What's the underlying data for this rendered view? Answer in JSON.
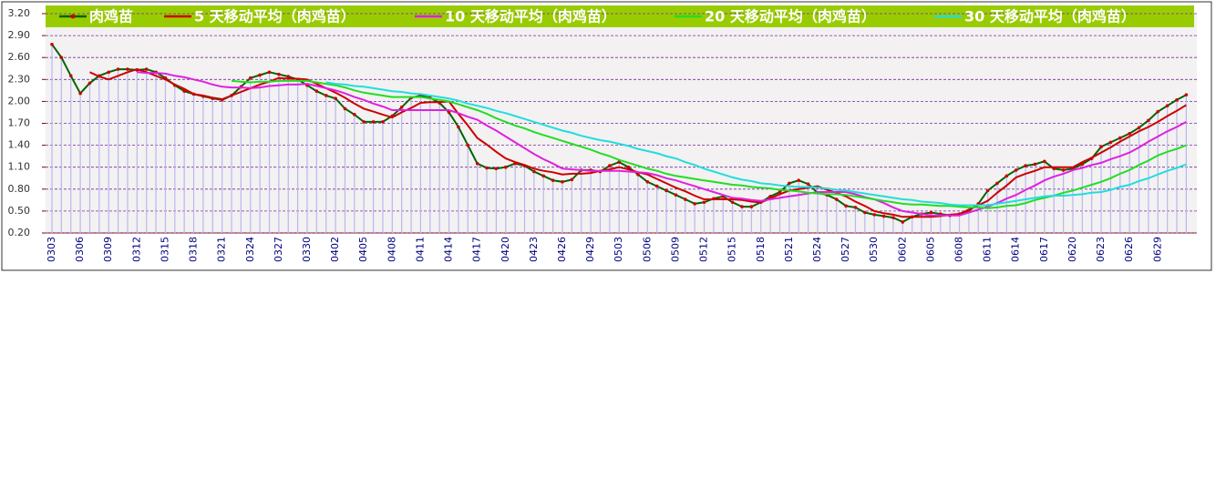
{
  "chart_data": {
    "type": "line",
    "categories": [
      "0303",
      null,
      null,
      "0306",
      null,
      null,
      "0309",
      null,
      null,
      "0312",
      null,
      null,
      "0315",
      null,
      null,
      "0318",
      null,
      null,
      "0321",
      null,
      null,
      "0324",
      null,
      null,
      "0327",
      null,
      null,
      "0330",
      null,
      null,
      "0402",
      null,
      null,
      "0405",
      null,
      null,
      "0408",
      null,
      null,
      "0411",
      null,
      null,
      "0414",
      null,
      null,
      "0417",
      null,
      null,
      "0420",
      null,
      null,
      "0423",
      null,
      null,
      "0426",
      null,
      null,
      "0429",
      null,
      null,
      "0503",
      null,
      null,
      "0506",
      null,
      null,
      "0509",
      null,
      null,
      "0512",
      null,
      null,
      "0515",
      null,
      null,
      "0518",
      null,
      null,
      "0521",
      null,
      null,
      "0524",
      null,
      null,
      "0527",
      null,
      null,
      "0530",
      null,
      null,
      "0602",
      null,
      null,
      "0605",
      null,
      null,
      "0608",
      null,
      null,
      "0611",
      null,
      null,
      "0614",
      null,
      null,
      "0617",
      null,
      null,
      "0620",
      null,
      null,
      "0623",
      null,
      null,
      "0626",
      null,
      null,
      "0629",
      null,
      null,
      null
    ],
    "series": [
      {
        "name": "肉鸡苗",
        "color": "#006400",
        "marker_color": "#cc0000",
        "values": [
          2.78,
          2.6,
          2.35,
          2.11,
          2.25,
          2.35,
          2.4,
          2.44,
          2.44,
          2.43,
          2.44,
          2.4,
          2.32,
          2.22,
          2.14,
          2.1,
          2.07,
          2.04,
          2.02,
          2.08,
          2.2,
          2.32,
          2.36,
          2.4,
          2.37,
          2.34,
          2.3,
          2.22,
          2.14,
          2.08,
          2.04,
          1.9,
          1.82,
          1.72,
          1.72,
          1.72,
          1.8,
          1.92,
          2.05,
          2.08,
          2.05,
          1.98,
          1.85,
          1.65,
          1.4,
          1.15,
          1.09,
          1.08,
          1.1,
          1.15,
          1.12,
          1.04,
          0.98,
          0.92,
          0.9,
          0.93,
          1.06,
          1.06,
          1.04,
          1.12,
          1.17,
          1.1,
          1.0,
          0.9,
          0.84,
          0.78,
          0.72,
          0.66,
          0.6,
          0.62,
          0.67,
          0.7,
          0.62,
          0.56,
          0.56,
          0.62,
          0.7,
          0.76,
          0.88,
          0.92,
          0.87,
          0.75,
          0.72,
          0.66,
          0.57,
          0.55,
          0.48,
          0.45,
          0.43,
          0.41,
          0.35,
          0.42,
          0.46,
          0.48,
          0.46,
          0.44,
          0.46,
          0.5,
          0.6,
          0.78,
          0.88,
          0.98,
          1.06,
          1.12,
          1.14,
          1.18,
          1.08,
          1.06,
          1.08,
          1.14,
          1.22,
          1.38,
          1.44,
          1.5,
          1.56,
          1.64,
          1.74,
          1.86,
          1.94,
          2.02,
          2.09
        ]
      },
      {
        "name": "5  天移动平均（肉鸡苗）",
        "color": "#cc0000",
        "values": [
          null,
          null,
          null,
          null,
          2.4,
          2.34,
          2.3,
          2.35,
          2.4,
          2.44,
          2.4,
          2.35,
          2.3,
          2.23,
          2.17,
          2.1,
          2.08,
          2.05,
          2.03,
          2.08,
          2.13,
          2.18,
          2.23,
          2.27,
          2.32,
          2.31,
          2.31,
          2.3,
          2.24,
          2.18,
          2.12,
          2.05,
          1.97,
          1.9,
          1.86,
          1.82,
          1.78,
          1.85,
          1.91,
          1.98,
          1.99,
          1.99,
          2.0,
          1.83,
          1.67,
          1.5,
          1.41,
          1.31,
          1.22,
          1.17,
          1.13,
          1.08,
          1.05,
          1.03,
          1.0,
          1.01,
          1.01,
          1.02,
          1.05,
          1.07,
          1.1,
          1.07,
          1.03,
          1.0,
          0.94,
          0.88,
          0.82,
          0.77,
          0.71,
          0.66,
          0.66,
          0.66,
          0.66,
          0.65,
          0.63,
          0.62,
          0.67,
          0.73,
          0.78,
          0.8,
          0.82,
          0.84,
          0.79,
          0.75,
          0.7,
          0.63,
          0.57,
          0.5,
          0.47,
          0.45,
          0.42,
          0.42,
          0.42,
          0.42,
          0.43,
          0.45,
          0.46,
          0.52,
          0.58,
          0.64,
          0.75,
          0.85,
          0.96,
          1.01,
          1.05,
          1.1,
          1.1,
          1.1,
          1.1,
          1.17,
          1.23,
          1.3,
          1.37,
          1.45,
          1.52,
          1.59,
          1.65,
          1.72,
          1.8,
          1.87,
          1.95
        ]
      },
      {
        "name": "10  天移动平均（肉鸡苗）",
        "color": "#e020e0",
        "values": [
          null,
          null,
          null,
          null,
          null,
          null,
          null,
          null,
          null,
          2.4,
          2.39,
          2.39,
          2.38,
          2.35,
          2.33,
          2.3,
          2.27,
          2.23,
          2.2,
          2.19,
          2.19,
          2.18,
          2.19,
          2.21,
          2.22,
          2.23,
          2.23,
          2.24,
          2.21,
          2.18,
          2.15,
          2.11,
          2.06,
          2.02,
          1.97,
          1.93,
          1.88,
          1.88,
          1.88,
          1.88,
          1.88,
          1.88,
          1.88,
          1.84,
          1.79,
          1.75,
          1.67,
          1.6,
          1.52,
          1.44,
          1.36,
          1.28,
          1.21,
          1.15,
          1.08,
          1.07,
          1.06,
          1.05,
          1.05,
          1.05,
          1.05,
          1.04,
          1.03,
          1.02,
          0.99,
          0.95,
          0.92,
          0.88,
          0.84,
          0.8,
          0.76,
          0.72,
          0.68,
          0.67,
          0.65,
          0.64,
          0.66,
          0.68,
          0.7,
          0.72,
          0.74,
          0.76,
          0.76,
          0.76,
          0.76,
          0.73,
          0.69,
          0.66,
          0.61,
          0.55,
          0.5,
          0.48,
          0.46,
          0.44,
          0.44,
          0.44,
          0.44,
          0.48,
          0.52,
          0.56,
          0.61,
          0.67,
          0.72,
          0.79,
          0.85,
          0.92,
          0.97,
          1.01,
          1.06,
          1.09,
          1.13,
          1.16,
          1.21,
          1.25,
          1.3,
          1.37,
          1.45,
          1.52,
          1.59,
          1.65,
          1.72
        ]
      },
      {
        "name": "20  天移动平均（肉鸡苗）",
        "color": "#22dd22",
        "values": [
          null,
          null,
          null,
          null,
          null,
          null,
          null,
          null,
          null,
          null,
          null,
          null,
          null,
          null,
          null,
          null,
          null,
          null,
          null,
          2.28,
          2.27,
          2.26,
          2.27,
          2.27,
          2.28,
          2.28,
          2.28,
          2.28,
          2.26,
          2.24,
          2.22,
          2.19,
          2.15,
          2.12,
          2.1,
          2.08,
          2.06,
          2.06,
          2.06,
          2.06,
          2.04,
          2.02,
          2.0,
          1.96,
          1.92,
          1.88,
          1.83,
          1.77,
          1.72,
          1.67,
          1.63,
          1.58,
          1.54,
          1.5,
          1.46,
          1.42,
          1.38,
          1.34,
          1.29,
          1.25,
          1.2,
          1.16,
          1.12,
          1.08,
          1.05,
          1.01,
          0.98,
          0.96,
          0.94,
          0.92,
          0.9,
          0.88,
          0.86,
          0.85,
          0.83,
          0.82,
          0.81,
          0.79,
          0.78,
          0.77,
          0.75,
          0.74,
          0.73,
          0.73,
          0.72,
          0.7,
          0.68,
          0.66,
          0.64,
          0.62,
          0.6,
          0.59,
          0.59,
          0.58,
          0.57,
          0.57,
          0.56,
          0.55,
          0.55,
          0.54,
          0.55,
          0.57,
          0.58,
          0.61,
          0.65,
          0.68,
          0.71,
          0.75,
          0.78,
          0.82,
          0.86,
          0.9,
          0.95,
          1.01,
          1.06,
          1.13,
          1.19,
          1.26,
          1.31,
          1.35,
          1.4
        ]
      },
      {
        "name": "30  天移动平均（肉鸡苗）",
        "color": "#22dddd",
        "values": [
          null,
          null,
          null,
          null,
          null,
          null,
          null,
          null,
          null,
          null,
          null,
          null,
          null,
          null,
          null,
          null,
          null,
          null,
          null,
          null,
          null,
          null,
          null,
          null,
          null,
          null,
          null,
          null,
          null,
          2.26,
          2.24,
          2.23,
          2.21,
          2.2,
          2.18,
          2.16,
          2.14,
          2.13,
          2.11,
          2.1,
          2.08,
          2.06,
          2.04,
          2.01,
          1.97,
          1.94,
          1.91,
          1.87,
          1.84,
          1.8,
          1.76,
          1.72,
          1.68,
          1.64,
          1.6,
          1.57,
          1.53,
          1.5,
          1.47,
          1.45,
          1.42,
          1.39,
          1.35,
          1.32,
          1.29,
          1.25,
          1.22,
          1.17,
          1.13,
          1.08,
          1.04,
          1.0,
          0.96,
          0.93,
          0.91,
          0.88,
          0.87,
          0.85,
          0.84,
          0.83,
          0.83,
          0.82,
          0.81,
          0.79,
          0.78,
          0.76,
          0.74,
          0.72,
          0.7,
          0.68,
          0.66,
          0.65,
          0.63,
          0.62,
          0.61,
          0.59,
          0.58,
          0.58,
          0.58,
          0.58,
          0.6,
          0.62,
          0.64,
          0.66,
          0.68,
          0.7,
          0.71,
          0.71,
          0.72,
          0.73,
          0.75,
          0.76,
          0.79,
          0.83,
          0.86,
          0.91,
          0.95,
          1.0,
          1.05,
          1.09,
          1.14
        ]
      }
    ],
    "ylim": [
      0.2,
      3.2
    ],
    "yticks": [
      {
        "value": 3.2,
        "label": "3.20"
      },
      {
        "value": 2.9,
        "label": "2.90"
      },
      {
        "value": 2.6,
        "label": "2.60"
      },
      {
        "value": 2.3,
        "label": "2.30"
      },
      {
        "value": 2.0,
        "label": "2.00"
      },
      {
        "value": 1.7,
        "label": "1.70"
      },
      {
        "value": 1.4,
        "label": "1.40"
      },
      {
        "value": 1.1,
        "label": "1.10"
      },
      {
        "value": 0.8,
        "label": "0.80"
      },
      {
        "value": 0.5,
        "label": "0.50"
      },
      {
        "value": 0.2,
        "label": "0.20"
      }
    ],
    "grid": true,
    "drop_lines": true,
    "legend": "top"
  }
}
